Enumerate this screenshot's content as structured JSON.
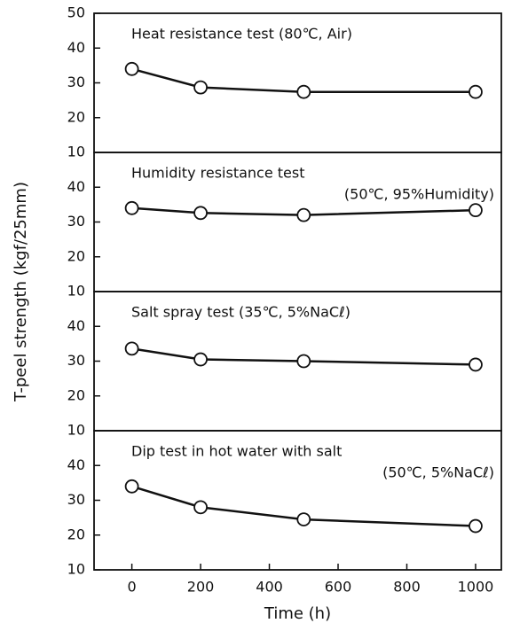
{
  "chart_data": [
    {
      "type": "line",
      "title": "Heat resistance test (80℃, Air)",
      "ylabel": "T-peel strength (kgf/25mm)",
      "x": [
        0,
        200,
        500,
        1000
      ],
      "values": [
        34,
        28.7,
        27.4,
        27.4
      ],
      "color": "#111111",
      "xlim": [
        -110,
        1075
      ],
      "ylim": [
        10,
        50
      ],
      "yticks": [
        10,
        20,
        30,
        40,
        50
      ]
    },
    {
      "type": "line",
      "title": "Humidity resistance test",
      "subtitle": "(50℃, 95%Humidity)",
      "x": [
        0,
        200,
        500,
        1000
      ],
      "values": [
        34,
        32.6,
        32,
        33.4
      ],
      "color": "#111111",
      "xlim": [
        -110,
        1075
      ],
      "ylim": [
        10,
        50
      ],
      "yticks": [
        10,
        20,
        30,
        40
      ]
    },
    {
      "type": "line",
      "title": "Salt spray test (35℃, 5%NaCℓ)",
      "x": [
        0,
        200,
        500,
        1000
      ],
      "values": [
        33.6,
        30.5,
        30,
        29
      ],
      "color": "#111111",
      "xlim": [
        -110,
        1075
      ],
      "ylim": [
        10,
        50
      ],
      "yticks": [
        10,
        20,
        30,
        40
      ]
    },
    {
      "type": "line",
      "title": "Dip test in hot water with salt",
      "subtitle": "(50℃, 5%NaCℓ)",
      "xlabel": "Time (h)",
      "x": [
        0,
        200,
        500,
        1000
      ],
      "values": [
        34,
        28,
        24.5,
        22.6
      ],
      "color": "#111111",
      "xlim": [
        -110,
        1075
      ],
      "ylim": [
        10,
        50
      ],
      "yticks": [
        10,
        20,
        30,
        40
      ],
      "xticks": [
        0,
        200,
        400,
        600,
        800,
        1000
      ]
    }
  ]
}
